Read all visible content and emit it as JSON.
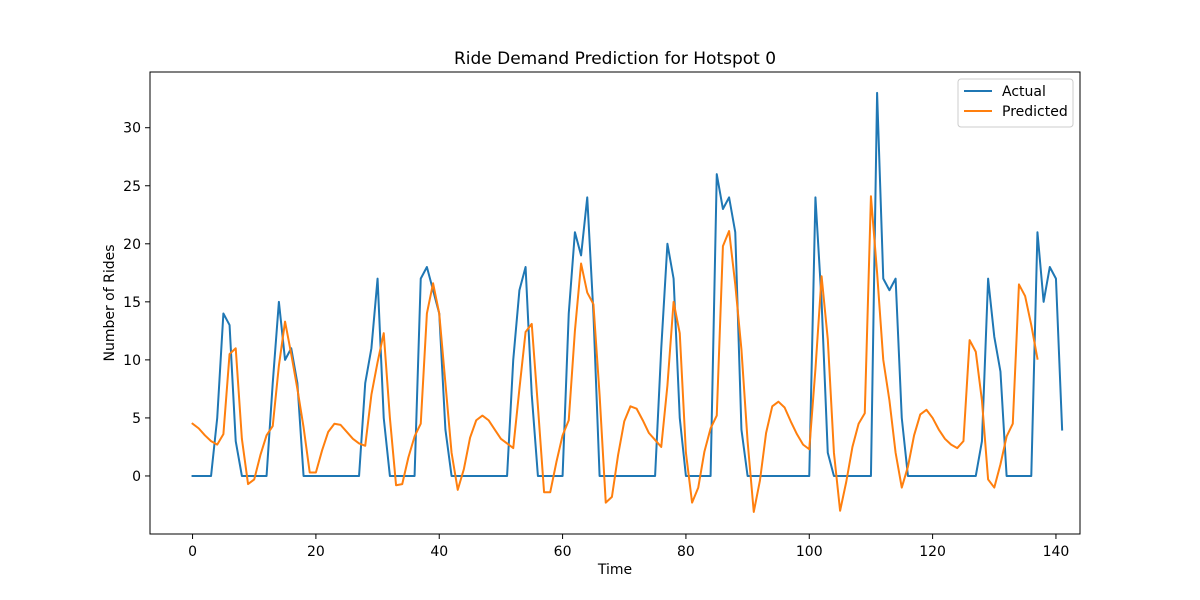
{
  "chart_data": {
    "type": "line",
    "title": "Ride Demand Prediction for Hotspot 0",
    "xlabel": "Time",
    "ylabel": "Number of Rides",
    "xlim": [
      -6.9,
      143.9
    ],
    "ylim": [
      -5.0,
      34.8
    ],
    "xticks": [
      0,
      20,
      40,
      60,
      80,
      100,
      120,
      140
    ],
    "yticks": [
      0,
      5,
      10,
      15,
      20,
      25,
      30
    ],
    "grid": false,
    "legend_position": "top-right",
    "series": [
      {
        "name": "Actual",
        "color": "#1f77b4",
        "x_start": 0,
        "values": [
          0,
          0,
          0,
          0,
          5,
          14,
          13,
          3,
          0,
          0,
          0,
          0,
          0,
          8,
          15,
          10,
          11,
          8,
          0,
          0,
          0,
          0,
          0,
          0,
          0,
          0,
          0,
          0,
          8,
          11,
          17,
          5,
          0,
          0,
          0,
          0,
          0,
          17,
          18,
          16,
          14,
          4,
          0,
          0,
          0,
          0,
          0,
          0,
          0,
          0,
          0,
          0,
          10,
          16,
          18,
          7,
          0,
          0,
          0,
          0,
          0,
          14,
          21,
          19,
          24,
          14,
          0,
          0,
          0,
          0,
          0,
          0,
          0,
          0,
          0,
          0,
          11,
          20,
          17,
          5,
          0,
          0,
          0,
          0,
          0,
          26,
          23,
          24,
          21,
          4,
          0,
          0,
          0,
          0,
          0,
          0,
          0,
          0,
          0,
          0,
          0,
          24,
          15,
          2,
          0,
          0,
          0,
          0,
          0,
          0,
          0,
          33,
          17,
          16,
          17,
          5,
          0,
          0,
          0,
          0,
          0,
          0,
          0,
          0,
          0,
          0,
          0,
          0,
          3,
          17,
          12,
          9,
          0,
          0,
          0,
          0,
          0,
          21,
          15,
          18,
          17,
          4
        ]
      },
      {
        "name": "Predicted",
        "color": "#ff7f0e",
        "x_start": 0,
        "values": [
          4.5,
          4.1,
          3.5,
          3.0,
          2.7,
          3.6,
          10.5,
          11.0,
          3.2,
          -0.7,
          -0.3,
          1.8,
          3.5,
          4.3,
          9.5,
          13.3,
          10.5,
          7.5,
          4.2,
          0.3,
          0.3,
          2.2,
          3.8,
          4.5,
          4.4,
          3.8,
          3.2,
          2.8,
          2.6,
          7.0,
          9.8,
          12.3,
          5.0,
          -0.8,
          -0.7,
          1.6,
          3.4,
          4.5,
          14.0,
          16.6,
          14.0,
          8.0,
          2.0,
          -1.2,
          0.6,
          3.3,
          4.8,
          5.2,
          4.8,
          4.0,
          3.2,
          2.8,
          2.4,
          7.5,
          12.4,
          13.1,
          6.0,
          -1.4,
          -1.4,
          1.2,
          3.5,
          4.8,
          12.5,
          18.3,
          15.8,
          14.8,
          7.0,
          -2.3,
          -1.8,
          1.8,
          4.7,
          6.0,
          5.8,
          4.8,
          3.7,
          3.1,
          2.5,
          7.8,
          15.0,
          12.3,
          2.0,
          -2.3,
          -1.0,
          2.1,
          4.1,
          5.2,
          19.8,
          21.1,
          16.5,
          10.9,
          3.0,
          -3.1,
          -0.4,
          3.7,
          6.0,
          6.4,
          5.9,
          4.7,
          3.6,
          2.7,
          2.3,
          9.2,
          17.2,
          11.8,
          2.0,
          -3.0,
          -0.5,
          2.5,
          4.5,
          5.4,
          24.1,
          17.5,
          10.0,
          6.5,
          2.0,
          -1.0,
          0.8,
          3.5,
          5.3,
          5.7,
          5.0,
          4.0,
          3.2,
          2.7,
          2.4,
          3.0,
          11.7,
          10.7,
          6.5,
          -0.3,
          -1.0,
          1.0,
          3.4,
          4.5,
          16.5,
          15.5,
          13.0,
          10.1
        ]
      }
    ]
  }
}
